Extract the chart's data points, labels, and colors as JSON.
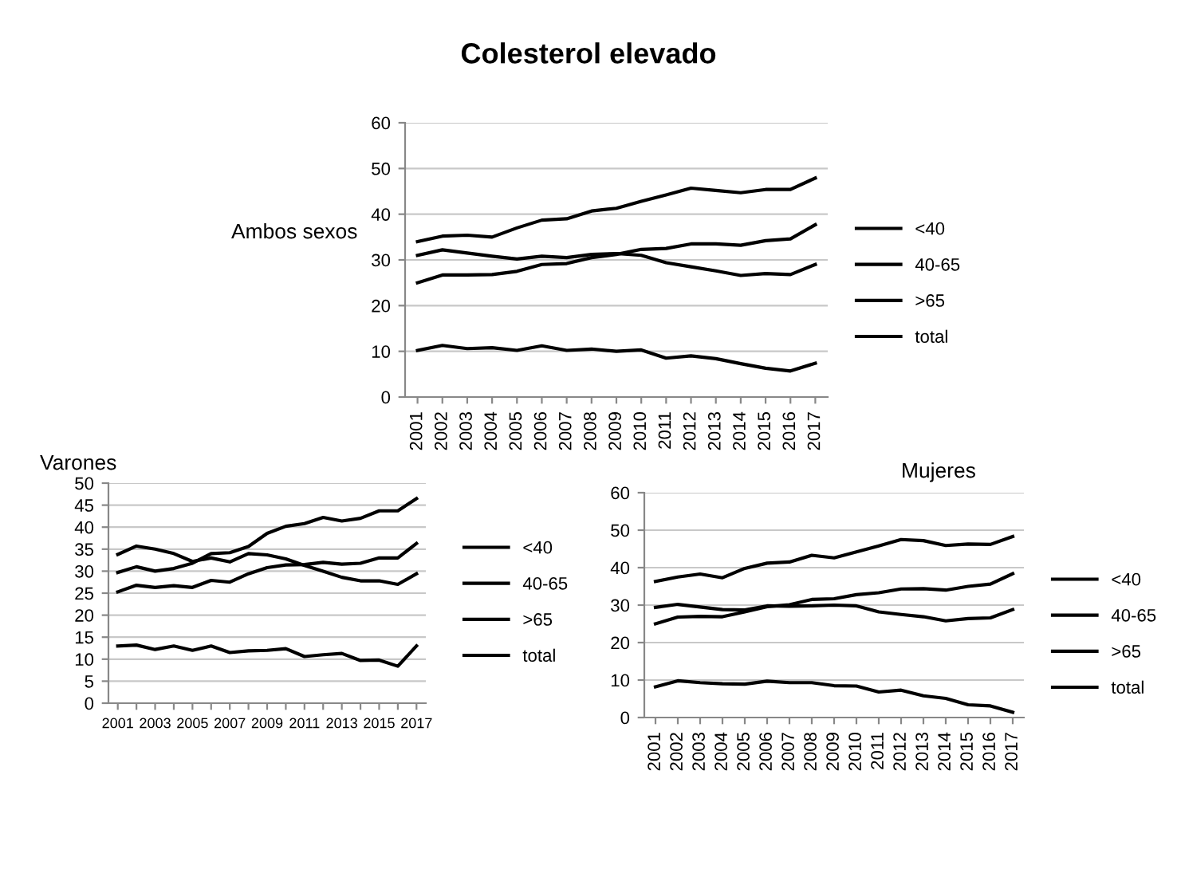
{
  "chart_data": [
    {
      "type": "line",
      "title": "Colesterol elevado",
      "subtitle": "Ambos sexos",
      "categories": [
        "2001",
        "2002",
        "2003",
        "2004",
        "2005",
        "2006",
        "2007",
        "2008",
        "2009",
        "2010",
        "2011",
        "2012",
        "2013",
        "2014",
        "2015",
        "2016",
        "2017"
      ],
      "ylim": [
        0,
        60
      ],
      "yticks": [
        0,
        10,
        20,
        30,
        40,
        50,
        60
      ],
      "grid": "y",
      "legend": "right",
      "series": [
        {
          "name": "<40",
          "color": "#000000",
          "values": [
            10.2,
            11.3,
            10.6,
            10.8,
            10.2,
            11.2,
            10.2,
            10.5,
            10,
            10.3,
            8.5,
            9,
            8.4,
            7.3,
            6.3,
            5.7,
            7.4
          ]
        },
        {
          "name": "40-65",
          "color": "#000000",
          "values": [
            31,
            32.2,
            31.5,
            30.8,
            30.2,
            30.8,
            30.5,
            31.2,
            31.4,
            31,
            29.4,
            28.5,
            27.6,
            26.6,
            27,
            26.8,
            29
          ]
        },
        {
          "name": ">65",
          "color": "#000000",
          "values": [
            34,
            35.2,
            35.4,
            35,
            37,
            38.7,
            39,
            40.7,
            41.3,
            42.8,
            44.2,
            45.7,
            45.2,
            44.7,
            45.4,
            45.4,
            47.9
          ]
        },
        {
          "name": "total",
          "color": "#000000",
          "values": [
            25,
            26.7,
            26.7,
            26.8,
            27.5,
            29,
            29.2,
            30.5,
            31.2,
            32.3,
            32.5,
            33.5,
            33.5,
            33.2,
            34.2,
            34.6,
            37.7
          ]
        }
      ]
    },
    {
      "type": "line",
      "subtitle": "Varones",
      "categories": [
        "2001",
        null,
        "2003",
        null,
        "2005",
        null,
        "2007",
        null,
        "2009",
        null,
        "2011",
        null,
        "2013",
        null,
        "2015",
        null,
        "2017"
      ],
      "ylim": [
        0,
        50
      ],
      "yticks": [
        0,
        5,
        10,
        15,
        20,
        25,
        30,
        35,
        40,
        45,
        50
      ],
      "grid": "y",
      "legend": "right",
      "series": [
        {
          "name": "<40",
          "color": "#000000",
          "values": [
            13,
            13.2,
            12.2,
            13,
            12,
            13,
            11.5,
            11.9,
            12,
            12.4,
            10.6,
            11,
            11.3,
            9.7,
            9.8,
            8.4,
            13
          ]
        },
        {
          "name": "40-65",
          "color": "#000000",
          "values": [
            33.8,
            35.7,
            35,
            34,
            32.2,
            33,
            32.1,
            34,
            33.7,
            32.8,
            31.3,
            30,
            28.6,
            27.8,
            27.8,
            27,
            29.4
          ]
        },
        {
          "name": ">65",
          "color": "#000000",
          "values": [
            29.7,
            31,
            30,
            30.6,
            31.8,
            34,
            34.2,
            35.6,
            38.6,
            40.2,
            40.8,
            42.2,
            41.4,
            42,
            43.7,
            43.7,
            46.5
          ]
        },
        {
          "name": "total",
          "color": "#000000",
          "values": [
            25.3,
            26.8,
            26.3,
            26.7,
            26.3,
            27.9,
            27.5,
            29.4,
            30.8,
            31.4,
            31.5,
            32,
            31.6,
            31.8,
            33,
            33,
            36.3
          ]
        }
      ]
    },
    {
      "type": "line",
      "subtitle": "Mujeres",
      "categories": [
        "2001",
        "2002",
        "2003",
        "2004",
        "2005",
        "2006",
        "2007",
        "2008",
        "2009",
        "2010",
        "2011",
        "2012",
        "2013",
        "2014",
        "2015",
        "2016",
        "2017"
      ],
      "ylim": [
        0,
        60
      ],
      "yticks": [
        0,
        10,
        20,
        30,
        40,
        50,
        60
      ],
      "grid": "y",
      "legend": "right",
      "series": [
        {
          "name": "<40",
          "color": "#000000",
          "values": [
            8.2,
            9.8,
            9.3,
            9,
            8.9,
            9.7,
            9.3,
            9.3,
            8.5,
            8.4,
            6.8,
            7.3,
            5.8,
            5.1,
            3.4,
            3.1,
            1.4
          ]
        },
        {
          "name": "40-65",
          "color": "#000000",
          "values": [
            29.4,
            30.2,
            29.5,
            28.8,
            28.7,
            29.8,
            29.7,
            29.8,
            30,
            29.8,
            28.2,
            27.5,
            26.9,
            25.8,
            26.4,
            26.6,
            28.8
          ]
        },
        {
          "name": ">65",
          "color": "#000000",
          "values": [
            36.3,
            37.5,
            38.3,
            37.3,
            39.8,
            41.2,
            41.5,
            43.3,
            42.6,
            44.2,
            45.8,
            47.5,
            47.2,
            45.9,
            46.3,
            46.2,
            48.3
          ]
        },
        {
          "name": "total",
          "color": "#000000",
          "values": [
            25,
            26.8,
            27,
            26.9,
            28.2,
            29.6,
            30.1,
            31.5,
            31.7,
            32.8,
            33.3,
            34.3,
            34.4,
            34,
            35,
            35.6,
            38.4
          ]
        }
      ]
    }
  ]
}
